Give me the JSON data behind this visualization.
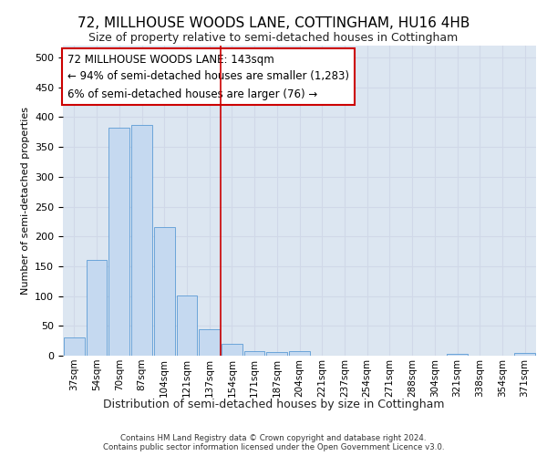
{
  "title": "72, MILLHOUSE WOODS LANE, COTTINGHAM, HU16 4HB",
  "subtitle": "Size of property relative to semi-detached houses in Cottingham",
  "xlabel": "Distribution of semi-detached houses by size in Cottingham",
  "ylabel": "Number of semi-detached properties",
  "footer1": "Contains HM Land Registry data © Crown copyright and database right 2024.",
  "footer2": "Contains public sector information licensed under the Open Government Licence v3.0.",
  "categories": [
    "37sqm",
    "54sqm",
    "70sqm",
    "87sqm",
    "104sqm",
    "121sqm",
    "137sqm",
    "154sqm",
    "171sqm",
    "187sqm",
    "204sqm",
    "221sqm",
    "237sqm",
    "254sqm",
    "271sqm",
    "288sqm",
    "304sqm",
    "321sqm",
    "338sqm",
    "354sqm",
    "371sqm"
  ],
  "values": [
    30,
    160,
    383,
    387,
    215,
    101,
    45,
    20,
    8,
    6,
    8,
    0,
    0,
    0,
    0,
    0,
    0,
    3,
    0,
    0,
    4
  ],
  "bar_color": "#c5d9f0",
  "bar_edge_color": "#5b9bd5",
  "grid_color": "#d0d8e8",
  "bg_color": "#dce6f1",
  "annotation_text": "72 MILLHOUSE WOODS LANE: 143sqm\n← 94% of semi-detached houses are smaller (1,283)\n6% of semi-detached houses are larger (76) →",
  "annotation_box_color": "#ffffff",
  "annotation_box_edge_color": "#cc0000",
  "vline_x_index": 6.5,
  "vline_color": "#cc0000",
  "ylim": [
    0,
    520
  ],
  "yticks": [
    0,
    50,
    100,
    150,
    200,
    250,
    300,
    350,
    400,
    450,
    500
  ]
}
